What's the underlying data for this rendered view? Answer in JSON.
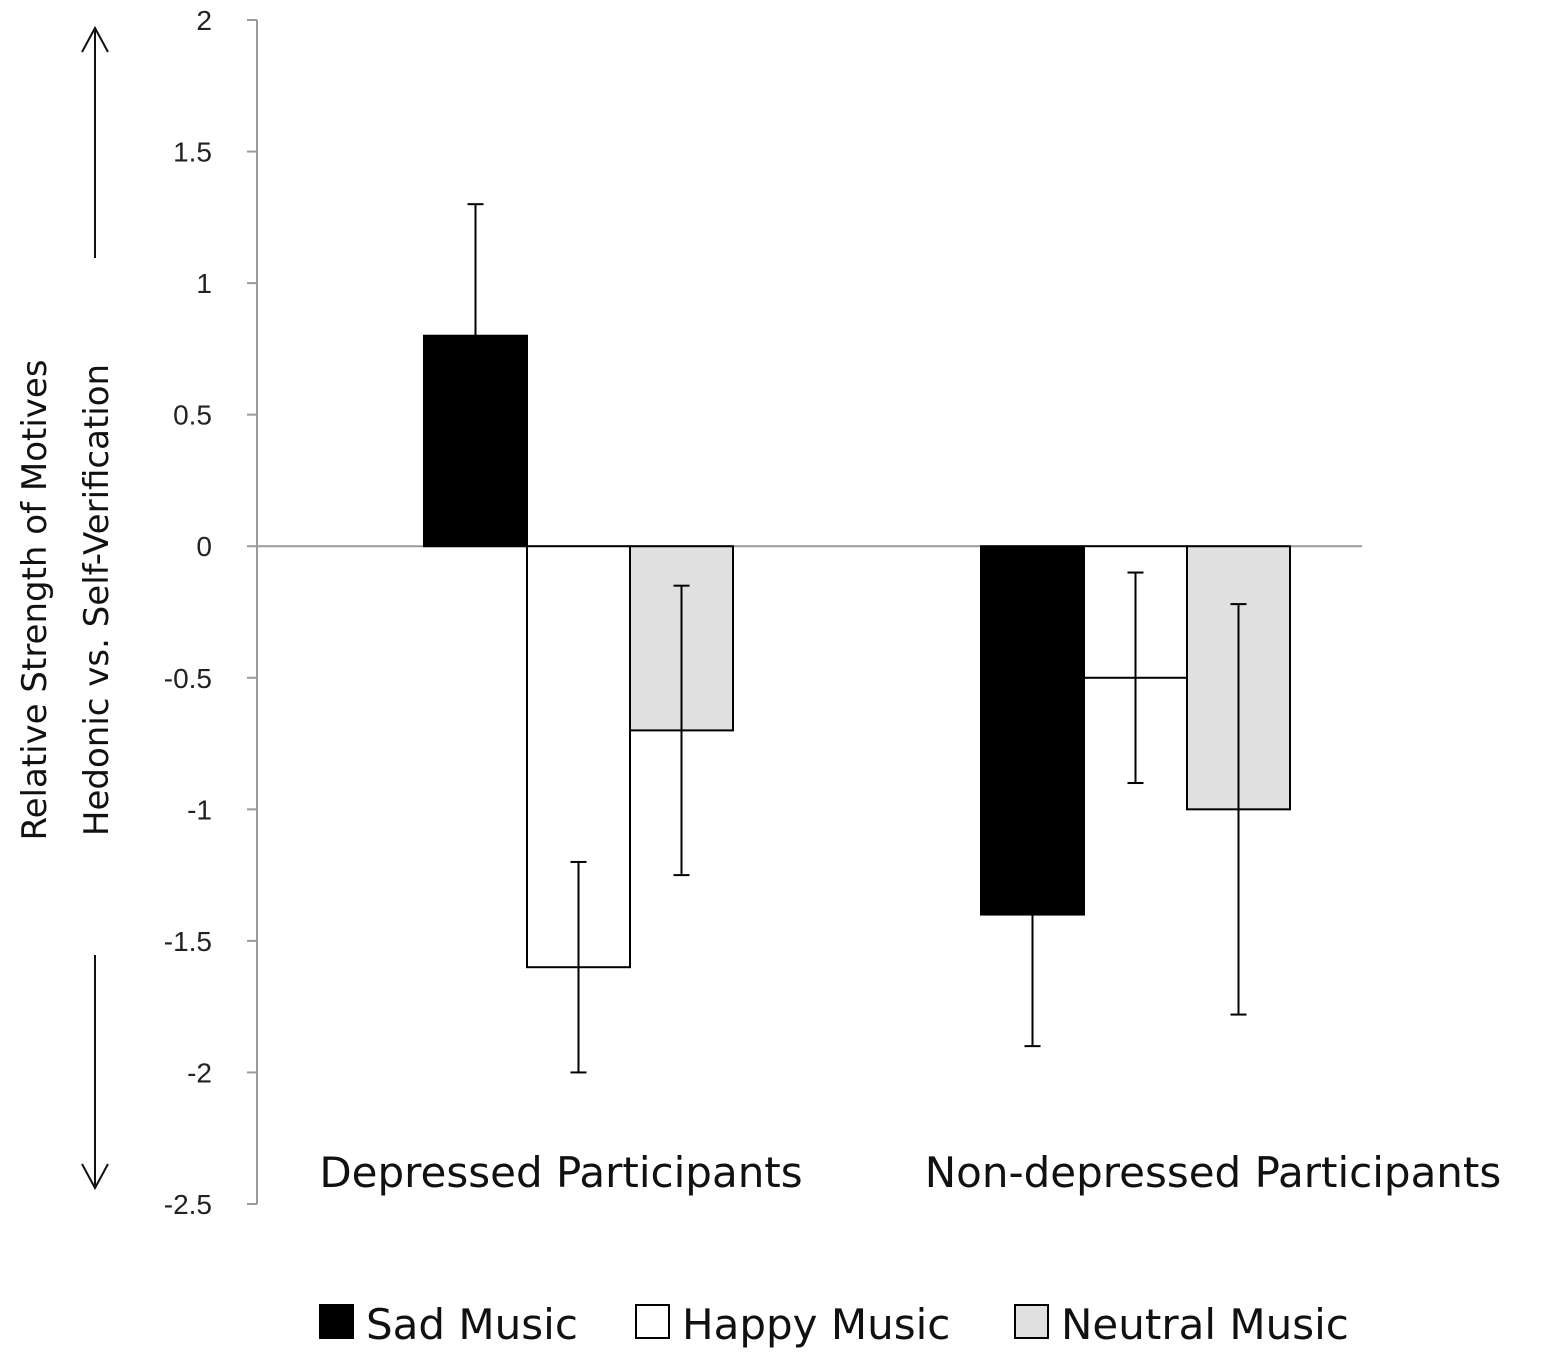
{
  "chart_data": {
    "type": "bar",
    "title": "",
    "categories": [
      "Depressed Participants",
      "Non-depressed Participants"
    ],
    "ylabel_lines": [
      "Relative Strength of Motives",
      "Hedonic vs. Self-Verification"
    ],
    "ylim": [
      -2.5,
      2
    ],
    "yticks": [
      2,
      1.5,
      1,
      0.5,
      0,
      -0.5,
      -1,
      -1.5,
      -2,
      -2.5
    ],
    "ytick_labels": [
      "2",
      "1.5",
      "1",
      "0.5",
      "0",
      "-0.5",
      "-1",
      "-1.5",
      "-2",
      "-2.5"
    ],
    "grid": false,
    "legend_position": "bottom",
    "series": [
      {
        "name": "Sad Music",
        "color": "#000000",
        "values": [
          0.8,
          -1.4
        ],
        "error_low": [
          0.5,
          0.5
        ],
        "error_high": [
          0.5,
          0.5
        ]
      },
      {
        "name": "Happy Music",
        "color": "#ffffff",
        "values": [
          -1.6,
          -0.5
        ],
        "error_low": [
          0.4,
          0.4
        ],
        "error_high": [
          0.4,
          0.4
        ]
      },
      {
        "name": "Neutral Music",
        "color": "#e0e0e0",
        "values": [
          -0.7,
          -1.0
        ],
        "error_low": [
          0.55,
          0.78
        ],
        "error_high": [
          0.55,
          0.78
        ]
      }
    ]
  }
}
